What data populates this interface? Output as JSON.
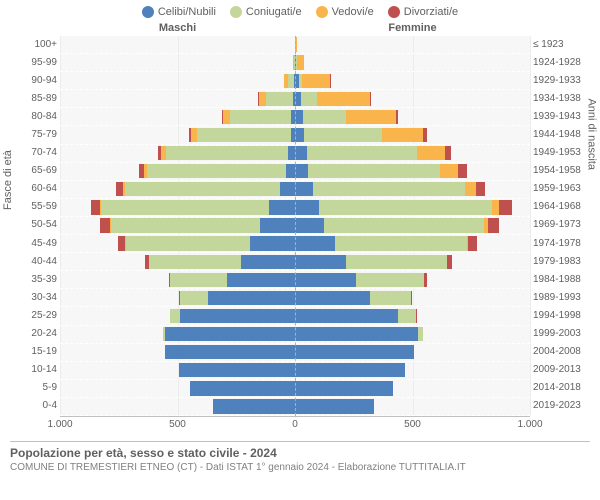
{
  "legend": [
    {
      "label": "Celibi/Nubili",
      "color": "#4f81bd"
    },
    {
      "label": "Coniugati/e",
      "color": "#c3d69b"
    },
    {
      "label": "Vedovi/e",
      "color": "#f9b54c"
    },
    {
      "label": "Divorziati/e",
      "color": "#c0504d"
    }
  ],
  "headers": {
    "male": "Maschi",
    "female": "Femmine"
  },
  "axis_titles": {
    "left": "Fasce di età",
    "right": "Anni di nascita"
  },
  "x_axis": {
    "max": 1000,
    "ticks": [
      1000,
      500,
      0,
      500,
      1000
    ],
    "labels": [
      "1.000",
      "500",
      "0",
      "500",
      "1.000"
    ]
  },
  "title": "Popolazione per età, sesso e stato civile - 2024",
  "subtitle": "COMUNE DI TREMESTIERI ETNEO (CT) - Dati ISTAT 1° gennaio 2024 - Elaborazione TUTTITALIA.IT",
  "colors": {
    "celibi": "#4f81bd",
    "coniugati": "#c3d69b",
    "vedovi": "#f9b54c",
    "divorziati": "#c0504d",
    "bg": "#f7f7f7"
  },
  "rows": [
    {
      "age": "100+",
      "birth": "≤ 1923",
      "m": [
        0,
        0,
        2,
        0
      ],
      "f": [
        0,
        0,
        8,
        0
      ]
    },
    {
      "age": "95-99",
      "birth": "1924-1928",
      "m": [
        2,
        2,
        5,
        0
      ],
      "f": [
        5,
        2,
        30,
        0
      ]
    },
    {
      "age": "90-94",
      "birth": "1929-1933",
      "m": [
        5,
        25,
        15,
        0
      ],
      "f": [
        15,
        15,
        120,
        2
      ]
    },
    {
      "age": "85-89",
      "birth": "1934-1938",
      "m": [
        10,
        115,
        30,
        2
      ],
      "f": [
        25,
        70,
        225,
        5
      ]
    },
    {
      "age": "80-84",
      "birth": "1939-1943",
      "m": [
        15,
        260,
        30,
        5
      ],
      "f": [
        35,
        180,
        215,
        10
      ]
    },
    {
      "age": "75-79",
      "birth": "1944-1948",
      "m": [
        18,
        400,
        25,
        8
      ],
      "f": [
        40,
        330,
        175,
        15
      ]
    },
    {
      "age": "70-74",
      "birth": "1949-1953",
      "m": [
        30,
        520,
        20,
        15
      ],
      "f": [
        50,
        470,
        120,
        25
      ]
    },
    {
      "age": "65-69",
      "birth": "1954-1958",
      "m": [
        40,
        590,
        12,
        22
      ],
      "f": [
        55,
        560,
        80,
        35
      ]
    },
    {
      "age": "60-64",
      "birth": "1959-1963",
      "m": [
        65,
        660,
        8,
        30
      ],
      "f": [
        75,
        650,
        45,
        40
      ]
    },
    {
      "age": "55-59",
      "birth": "1964-1968",
      "m": [
        110,
        715,
        5,
        40
      ],
      "f": [
        100,
        740,
        30,
        55
      ]
    },
    {
      "age": "50-54",
      "birth": "1969-1973",
      "m": [
        150,
        635,
        3,
        42
      ],
      "f": [
        125,
        680,
        15,
        50
      ]
    },
    {
      "age": "45-49",
      "birth": "1974-1978",
      "m": [
        190,
        530,
        2,
        30
      ],
      "f": [
        170,
        560,
        8,
        38
      ]
    },
    {
      "age": "40-44",
      "birth": "1979-1983",
      "m": [
        230,
        390,
        0,
        18
      ],
      "f": [
        215,
        430,
        3,
        22
      ]
    },
    {
      "age": "35-39",
      "birth": "1984-1988",
      "m": [
        290,
        240,
        0,
        8
      ],
      "f": [
        260,
        290,
        1,
        12
      ]
    },
    {
      "age": "30-34",
      "birth": "1989-1993",
      "m": [
        370,
        120,
        0,
        3
      ],
      "f": [
        320,
        175,
        0,
        5
      ]
    },
    {
      "age": "25-29",
      "birth": "1994-1998",
      "m": [
        490,
        40,
        0,
        1
      ],
      "f": [
        440,
        75,
        0,
        2
      ]
    },
    {
      "age": "20-24",
      "birth": "1999-2003",
      "m": [
        555,
        6,
        0,
        0
      ],
      "f": [
        525,
        18,
        0,
        0
      ]
    },
    {
      "age": "15-19",
      "birth": "2004-2008",
      "m": [
        555,
        0,
        0,
        0
      ],
      "f": [
        505,
        0,
        0,
        0
      ]
    },
    {
      "age": "10-14",
      "birth": "2009-2013",
      "m": [
        495,
        0,
        0,
        0
      ],
      "f": [
        470,
        0,
        0,
        0
      ]
    },
    {
      "age": "5-9",
      "birth": "2014-2018",
      "m": [
        445,
        0,
        0,
        0
      ],
      "f": [
        415,
        0,
        0,
        0
      ]
    },
    {
      "age": "0-4",
      "birth": "2019-2023",
      "m": [
        350,
        0,
        0,
        0
      ],
      "f": [
        335,
        0,
        0,
        0
      ]
    }
  ]
}
